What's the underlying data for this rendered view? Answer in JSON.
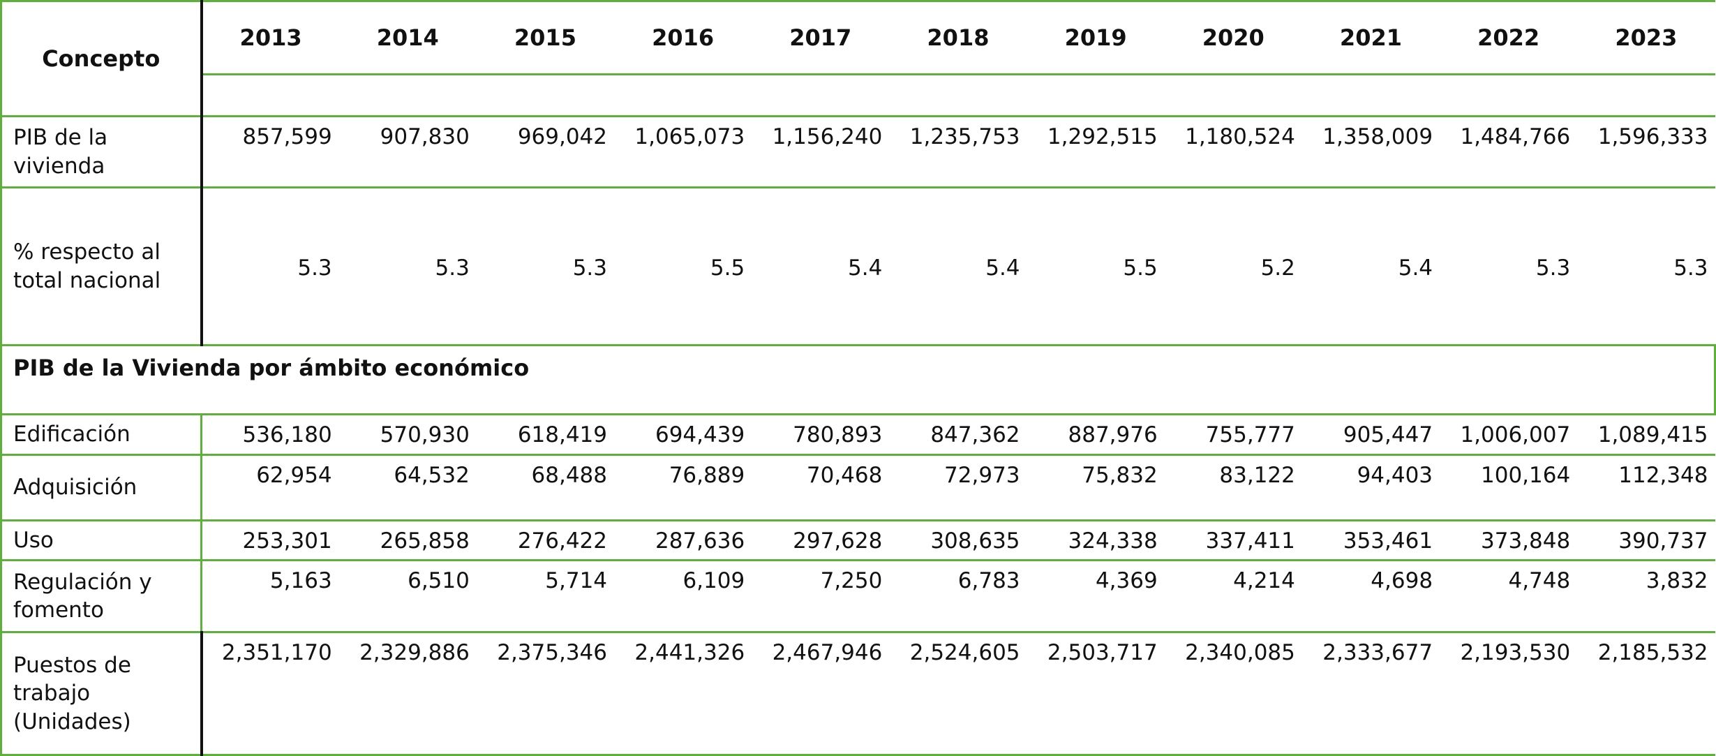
{
  "header": {
    "concept": "Concepto",
    "years": [
      "2013",
      "2014",
      "2015",
      "2016",
      "2017",
      "2018",
      "2019",
      "2020",
      "2021",
      "2022",
      "2023"
    ]
  },
  "table": {
    "rows": [
      {
        "label": "PIB de la vivienda",
        "values": [
          "857,599",
          "907,830",
          "969,042",
          "1,065,073",
          "1,156,240",
          "1,235,753",
          "1,292,515",
          "1,180,524",
          "1,358,009",
          "1,484,766",
          "1,596,333"
        ]
      },
      {
        "label": "% respecto al total nacional",
        "values": [
          "5.3",
          "5.3",
          "5.3",
          "5.5",
          "5.4",
          "5.4",
          "5.5",
          "5.2",
          "5.4",
          "5.3",
          "5.3"
        ]
      },
      {
        "section": "PIB de la Vivienda por ámbito económico"
      },
      {
        "label": "Edificación",
        "values": [
          "536,180",
          "570,930",
          "618,419",
          "694,439",
          "780,893",
          "847,362",
          "887,976",
          "755,777",
          "905,447",
          "1,006,007",
          "1,089,415"
        ]
      },
      {
        "label": "Adquisición",
        "values": [
          "62,954",
          "64,532",
          "68,488",
          "76,889",
          "70,468",
          "72,973",
          "75,832",
          "83,122",
          "94,403",
          "100,164",
          "112,348"
        ]
      },
      {
        "label": "Uso",
        "values": [
          "253,301",
          "265,858",
          "276,422",
          "287,636",
          "297,628",
          "308,635",
          "324,338",
          "337,411",
          "353,461",
          "373,848",
          "390,737"
        ]
      },
      {
        "label": "Regulación y fomento",
        "values": [
          "5,163",
          "6,510",
          "5,714",
          "6,109",
          "7,250",
          "6,783",
          "4,369",
          "4,214",
          "4,698",
          "4,748",
          "3,832"
        ]
      },
      {
        "label": "Puestos de trabajo (Unidades)",
        "values": [
          "2,351,170",
          "2,329,886",
          "2,375,346",
          "2,441,326",
          "2,467,946",
          "2,524,605",
          "2,503,717",
          "2,340,085",
          "2,333,677",
          "2,193,530",
          "2,185,532"
        ]
      }
    ]
  }
}
